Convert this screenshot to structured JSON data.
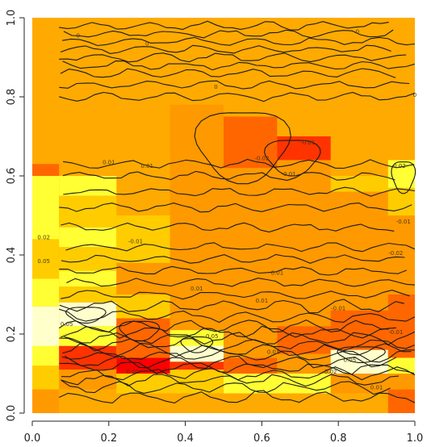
{
  "chart_data": {
    "type": "heatmap",
    "title": "",
    "xlabel": "",
    "ylabel": "",
    "xlim": [
      0,
      1
    ],
    "ylim": [
      0,
      1
    ],
    "x_ticks": [
      "0.0",
      "0.2",
      "0.4",
      "0.6",
      "0.8",
      "1.0"
    ],
    "y_ticks": [
      "0.0",
      "0.2",
      "0.4",
      "0.6",
      "0.8",
      "1.0"
    ],
    "x_tick_values": [
      0,
      0.2,
      0.4,
      0.6,
      0.8,
      1.0
    ],
    "y_tick_values": [
      0,
      0.2,
      0.4,
      0.6,
      0.8,
      1.0
    ],
    "colors": {
      "palette": [
        "#ff0000",
        "#ff3300",
        "#ff6600",
        "#ff9900",
        "#ffcc00",
        "#ffff33",
        "#ffffcc"
      ],
      "background": "#ffaa00",
      "contour": "#1a1a1a"
    },
    "x_bands": [
      0,
      0.07,
      0.22,
      0.36,
      0.5,
      0.64,
      0.78,
      0.93,
      1.0
    ],
    "cells": [
      {
        "x0": 0.0,
        "x1": 0.07,
        "y0": 0.0,
        "y1": 0.06,
        "v": 3
      },
      {
        "x0": 0.0,
        "x1": 0.07,
        "y0": 0.06,
        "y1": 0.12,
        "v": 4
      },
      {
        "x0": 0.0,
        "x1": 0.07,
        "y0": 0.12,
        "y1": 0.2,
        "v": 5
      },
      {
        "x0": 0.0,
        "x1": 0.07,
        "y0": 0.2,
        "y1": 0.27,
        "v": 6
      },
      {
        "x0": 0.0,
        "x1": 0.07,
        "y0": 0.27,
        "y1": 0.34,
        "v": 5
      },
      {
        "x0": 0.0,
        "x1": 0.07,
        "y0": 0.34,
        "y1": 0.44,
        "v": 4
      },
      {
        "x0": 0.0,
        "x1": 0.07,
        "y0": 0.44,
        "y1": 0.5,
        "v": 5
      },
      {
        "x0": 0.0,
        "x1": 0.07,
        "y0": 0.5,
        "y1": 0.6,
        "v": 5
      },
      {
        "x0": 0.0,
        "x1": 0.07,
        "y0": 0.6,
        "y1": 0.63,
        "v": 2
      },
      {
        "x0": 0.07,
        "x1": 0.22,
        "y0": 0.06,
        "y1": 0.11,
        "v": 3
      },
      {
        "x0": 0.07,
        "x1": 0.22,
        "y0": 0.11,
        "y1": 0.17,
        "v": 1
      },
      {
        "x0": 0.07,
        "x1": 0.22,
        "y0": 0.17,
        "y1": 0.22,
        "v": 5
      },
      {
        "x0": 0.07,
        "x1": 0.22,
        "y0": 0.22,
        "y1": 0.28,
        "v": 6
      },
      {
        "x0": 0.07,
        "x1": 0.22,
        "y0": 0.28,
        "y1": 0.32,
        "v": 4
      },
      {
        "x0": 0.07,
        "x1": 0.22,
        "y0": 0.32,
        "y1": 0.36,
        "v": 5
      },
      {
        "x0": 0.07,
        "x1": 0.22,
        "y0": 0.36,
        "y1": 0.42,
        "v": 4
      },
      {
        "x0": 0.07,
        "x1": 0.22,
        "y0": 0.42,
        "y1": 0.47,
        "v": 5
      },
      {
        "x0": 0.07,
        "x1": 0.22,
        "y0": 0.47,
        "y1": 0.55,
        "v": 4
      },
      {
        "x0": 0.07,
        "x1": 0.22,
        "y0": 0.55,
        "y1": 0.6,
        "v": 5
      },
      {
        "x0": 0.22,
        "x1": 0.36,
        "y0": 0.05,
        "y1": 0.1,
        "v": 4
      },
      {
        "x0": 0.22,
        "x1": 0.36,
        "y0": 0.1,
        "y1": 0.14,
        "v": 0
      },
      {
        "x0": 0.22,
        "x1": 0.36,
        "y0": 0.14,
        "y1": 0.18,
        "v": 2
      },
      {
        "x0": 0.22,
        "x1": 0.36,
        "y0": 0.18,
        "y1": 0.24,
        "v": 2
      },
      {
        "x0": 0.22,
        "x1": 0.36,
        "y0": 0.24,
        "y1": 0.3,
        "v": 4
      },
      {
        "x0": 0.22,
        "x1": 0.36,
        "y0": 0.3,
        "y1": 0.38,
        "v": 3
      },
      {
        "x0": 0.22,
        "x1": 0.36,
        "y0": 0.38,
        "y1": 0.5,
        "v": 4
      },
      {
        "x0": 0.36,
        "x1": 0.5,
        "y0": 0.05,
        "y1": 0.11,
        "v": 4
      },
      {
        "x0": 0.36,
        "x1": 0.5,
        "y0": 0.11,
        "y1": 0.16,
        "v": 1
      },
      {
        "x0": 0.36,
        "x1": 0.5,
        "y0": 0.16,
        "y1": 0.21,
        "v": 5
      },
      {
        "x0": 0.36,
        "x1": 0.5,
        "y0": 0.21,
        "y1": 0.27,
        "v": 3
      },
      {
        "x0": 0.36,
        "x1": 0.5,
        "y0": 0.27,
        "y1": 0.34,
        "v": 3
      },
      {
        "x0": 0.36,
        "x1": 0.5,
        "y0": 0.34,
        "y1": 0.55,
        "v": 3
      },
      {
        "x0": 0.36,
        "x1": 0.5,
        "y0": 0.55,
        "y1": 0.68,
        "v": 3
      },
      {
        "x0": 0.36,
        "x1": 0.5,
        "y0": 0.68,
        "y1": 0.78,
        "v": 3
      },
      {
        "x0": 0.5,
        "x1": 0.64,
        "y0": 0.05,
        "y1": 0.1,
        "v": 5
      },
      {
        "x0": 0.5,
        "x1": 0.64,
        "y0": 0.1,
        "y1": 0.14,
        "v": 2
      },
      {
        "x0": 0.5,
        "x1": 0.64,
        "y0": 0.14,
        "y1": 0.22,
        "v": 3
      },
      {
        "x0": 0.5,
        "x1": 0.64,
        "y0": 0.22,
        "y1": 0.34,
        "v": 3
      },
      {
        "x0": 0.5,
        "x1": 0.64,
        "y0": 0.34,
        "y1": 0.46,
        "v": 3
      },
      {
        "x0": 0.5,
        "x1": 0.64,
        "y0": 0.46,
        "y1": 0.62,
        "v": 3
      },
      {
        "x0": 0.5,
        "x1": 0.64,
        "y0": 0.62,
        "y1": 0.75,
        "v": 2
      },
      {
        "x0": 0.64,
        "x1": 0.78,
        "y0": 0.05,
        "y1": 0.1,
        "v": 5
      },
      {
        "x0": 0.64,
        "x1": 0.78,
        "y0": 0.1,
        "y1": 0.15,
        "v": 3
      },
      {
        "x0": 0.64,
        "x1": 0.78,
        "y0": 0.15,
        "y1": 0.22,
        "v": 2
      },
      {
        "x0": 0.64,
        "x1": 0.78,
        "y0": 0.22,
        "y1": 0.3,
        "v": 3
      },
      {
        "x0": 0.64,
        "x1": 0.78,
        "y0": 0.3,
        "y1": 0.44,
        "v": 3
      },
      {
        "x0": 0.64,
        "x1": 0.78,
        "y0": 0.44,
        "y1": 0.56,
        "v": 3
      },
      {
        "x0": 0.64,
        "x1": 0.78,
        "y0": 0.56,
        "y1": 0.64,
        "v": 3
      },
      {
        "x0": 0.64,
        "x1": 0.78,
        "y0": 0.64,
        "y1": 0.7,
        "v": 1
      },
      {
        "x0": 0.78,
        "x1": 0.93,
        "y0": 0.05,
        "y1": 0.1,
        "v": 3
      },
      {
        "x0": 0.78,
        "x1": 0.93,
        "y0": 0.1,
        "y1": 0.16,
        "v": 6
      },
      {
        "x0": 0.78,
        "x1": 0.93,
        "y0": 0.16,
        "y1": 0.2,
        "v": 2
      },
      {
        "x0": 0.78,
        "x1": 0.93,
        "y0": 0.2,
        "y1": 0.26,
        "v": 2
      },
      {
        "x0": 0.78,
        "x1": 0.93,
        "y0": 0.26,
        "y1": 0.34,
        "v": 3
      },
      {
        "x0": 0.78,
        "x1": 0.93,
        "y0": 0.34,
        "y1": 0.5,
        "v": 3
      },
      {
        "x0": 0.78,
        "x1": 0.93,
        "y0": 0.5,
        "y1": 0.56,
        "v": 3
      },
      {
        "x0": 0.78,
        "x1": 0.93,
        "y0": 0.56,
        "y1": 0.6,
        "v": 4
      },
      {
        "x0": 0.93,
        "x1": 1.0,
        "y0": 0.0,
        "y1": 0.06,
        "v": 2
      },
      {
        "x0": 0.93,
        "x1": 1.0,
        "y0": 0.06,
        "y1": 0.1,
        "v": 3
      },
      {
        "x0": 0.93,
        "x1": 1.0,
        "y0": 0.1,
        "y1": 0.14,
        "v": 5
      },
      {
        "x0": 0.93,
        "x1": 1.0,
        "y0": 0.14,
        "y1": 0.2,
        "v": 2
      },
      {
        "x0": 0.93,
        "x1": 1.0,
        "y0": 0.2,
        "y1": 0.3,
        "v": 2
      },
      {
        "x0": 0.93,
        "x1": 1.0,
        "y0": 0.3,
        "y1": 0.5,
        "v": 3
      },
      {
        "x0": 0.93,
        "x1": 1.0,
        "y0": 0.5,
        "y1": 0.57,
        "v": 4
      },
      {
        "x0": 0.93,
        "x1": 1.0,
        "y0": 0.57,
        "y1": 0.64,
        "v": 5
      },
      {
        "x0": 0.0,
        "x1": 0.07,
        "y0": 0.17,
        "y1": 0.23,
        "v": 6
      },
      {
        "x0": 0.36,
        "x1": 0.5,
        "y0": 0.13,
        "y1": 0.17,
        "v": 6
      }
    ],
    "contour_levels_y": [
      0.04,
      0.065,
      0.085,
      0.1,
      0.115,
      0.13,
      0.145,
      0.16,
      0.175,
      0.19,
      0.205,
      0.22,
      0.245,
      0.27,
      0.3,
      0.33,
      0.36,
      0.39,
      0.42,
      0.47,
      0.52,
      0.56,
      0.6,
      0.63,
      0.8,
      0.83,
      0.86,
      0.88,
      0.9,
      0.92,
      0.94,
      0.96,
      0.98
    ],
    "contour_labels": [
      {
        "x": 0.03,
        "y": 0.38,
        "text": "0.05"
      },
      {
        "x": 0.03,
        "y": 0.44,
        "text": "0.02"
      },
      {
        "x": 0.09,
        "y": 0.22,
        "text": "0.05"
      },
      {
        "x": 0.2,
        "y": 0.63,
        "text": "0.01"
      },
      {
        "x": 0.27,
        "y": 0.43,
        "text": "-0.01"
      },
      {
        "x": 0.3,
        "y": 0.62,
        "text": "0.01"
      },
      {
        "x": 0.43,
        "y": 0.31,
        "text": "0.01"
      },
      {
        "x": 0.6,
        "y": 0.28,
        "text": "0.01"
      },
      {
        "x": 0.64,
        "y": 0.35,
        "text": "0.01"
      },
      {
        "x": 0.63,
        "y": 0.15,
        "text": "0.01"
      },
      {
        "x": 0.78,
        "y": 0.1,
        "text": "0.02"
      },
      {
        "x": 0.8,
        "y": 0.26,
        "text": "-0.01"
      },
      {
        "x": 0.9,
        "y": 0.06,
        "text": "0.01"
      },
      {
        "x": 0.95,
        "y": 0.2,
        "text": "-0.01"
      },
      {
        "x": 0.95,
        "y": 0.4,
        "text": "-0.02"
      },
      {
        "x": 0.97,
        "y": 0.48,
        "text": "-0.01"
      },
      {
        "x": 0.96,
        "y": 0.62,
        "text": "0.02"
      },
      {
        "x": 0.72,
        "y": 0.68,
        "text": "-0.01"
      },
      {
        "x": 0.67,
        "y": 0.6,
        "text": "-0.01"
      },
      {
        "x": 0.6,
        "y": 0.64,
        "text": "-0.02"
      },
      {
        "x": 0.3,
        "y": 0.93,
        "text": "0"
      },
      {
        "x": 0.48,
        "y": 0.82,
        "text": "0"
      },
      {
        "x": 0.85,
        "y": 0.96,
        "text": "0"
      },
      {
        "x": 1.0,
        "y": 0.8,
        "text": "0"
      },
      {
        "x": 0.12,
        "y": 0.95,
        "text": "0"
      },
      {
        "x": 0.47,
        "y": 0.19,
        "text": "0.05"
      },
      {
        "x": 0.26,
        "y": 0.1,
        "text": "-0.04"
      },
      {
        "x": 0.83,
        "y": 0.13,
        "text": "0.05"
      }
    ],
    "grid": false,
    "legend": "none"
  }
}
